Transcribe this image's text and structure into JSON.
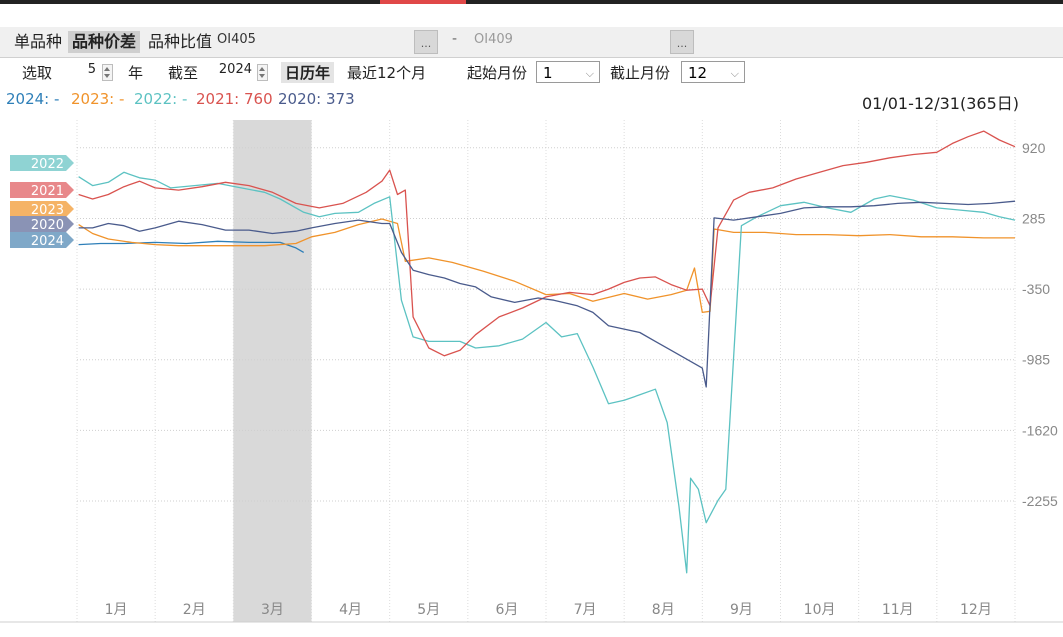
{
  "tabs": [
    {
      "label": "单品种",
      "active": false
    },
    {
      "label": "品种价差",
      "active": true
    },
    {
      "label": "品种比值",
      "active": false
    }
  ],
  "symbols": {
    "left": "OI405",
    "separator": "-",
    "right": "OI409",
    "button_label": "..."
  },
  "controls": {
    "select_label": "选取",
    "years_value": "5",
    "year_unit": "年",
    "until_label": "截至",
    "until_value": "2024",
    "calendar_label": "日历年",
    "recent_label": "最近12个月",
    "start_month_label": "起始月份",
    "start_month_value": "1",
    "end_month_label": "截止月份",
    "end_month_value": "12"
  },
  "legend": [
    {
      "text": "2024: -",
      "color": "#2e7fb8"
    },
    {
      "text": "2023: -",
      "color": "#f0932b"
    },
    {
      "text": "2022: -",
      "color": "#5cc2c2"
    },
    {
      "text": "2021: 760",
      "color": "#d9534f"
    },
    {
      "text": "2020: 373",
      "color": "#4a5b8c"
    }
  ],
  "range_label": "01/01-12/31(365日)",
  "chart_data": {
    "type": "line",
    "x_unit": "month",
    "xlim": [
      1,
      13
    ],
    "ylim": [
      -3100,
      1170
    ],
    "y_ticks": [
      920,
      285,
      -350,
      -985,
      -1620,
      -2255
    ],
    "y_tick_labels": [
      "920",
      "285",
      "-350",
      "-985",
      "-1620",
      "-2255"
    ],
    "x_tick_labels": [
      "1月",
      "2月",
      "3月",
      "4月",
      "5月",
      "6月",
      "7月",
      "8月",
      "9月",
      "10月",
      "11月",
      "12月"
    ],
    "shaded_region": {
      "x_start": 3.0,
      "x_end": 4.0
    },
    "grid": true,
    "series_tags": [
      "2022",
      "2021",
      "2023",
      "2020",
      "2024"
    ],
    "series": [
      {
        "name": "2024",
        "color": "#2e7fb8",
        "tag_color": "#7fa8c8",
        "points": [
          [
            1.02,
            50
          ],
          [
            1.3,
            60
          ],
          [
            1.6,
            60
          ],
          [
            2.0,
            70
          ],
          [
            2.4,
            60
          ],
          [
            2.8,
            80
          ],
          [
            3.2,
            70
          ],
          [
            3.6,
            70
          ],
          [
            3.8,
            20
          ],
          [
            3.9,
            -20
          ]
        ]
      },
      {
        "name": "2023",
        "color": "#f0932b",
        "tag_color": "#f5b366",
        "points": [
          [
            1.02,
            230
          ],
          [
            1.2,
            150
          ],
          [
            1.4,
            100
          ],
          [
            1.7,
            70
          ],
          [
            2.0,
            50
          ],
          [
            2.3,
            40
          ],
          [
            2.6,
            40
          ],
          [
            3.0,
            40
          ],
          [
            3.4,
            40
          ],
          [
            3.8,
            60
          ],
          [
            4.0,
            120
          ],
          [
            4.3,
            160
          ],
          [
            4.6,
            230
          ],
          [
            4.9,
            280
          ],
          [
            5.1,
            240
          ],
          [
            5.2,
            -100
          ],
          [
            5.5,
            -70
          ],
          [
            5.8,
            -110
          ],
          [
            6.2,
            -190
          ],
          [
            6.6,
            -280
          ],
          [
            7.0,
            -400
          ],
          [
            7.3,
            -390
          ],
          [
            7.6,
            -460
          ],
          [
            8.0,
            -390
          ],
          [
            8.3,
            -440
          ],
          [
            8.6,
            -400
          ],
          [
            8.8,
            -360
          ],
          [
            8.9,
            -160
          ],
          [
            9.0,
            -560
          ],
          [
            9.1,
            -550
          ],
          [
            9.15,
            190
          ],
          [
            9.4,
            160
          ],
          [
            9.8,
            160
          ],
          [
            10.2,
            140
          ],
          [
            10.6,
            140
          ],
          [
            11.0,
            130
          ],
          [
            11.4,
            140
          ],
          [
            11.8,
            120
          ],
          [
            12.2,
            120
          ],
          [
            12.6,
            110
          ],
          [
            13.0,
            110
          ]
        ]
      },
      {
        "name": "2022",
        "color": "#5cc2c2",
        "tag_color": "#8fd3d3",
        "points": [
          [
            1.02,
            660
          ],
          [
            1.2,
            580
          ],
          [
            1.4,
            610
          ],
          [
            1.6,
            700
          ],
          [
            1.8,
            650
          ],
          [
            2.0,
            630
          ],
          [
            2.2,
            560
          ],
          [
            2.5,
            580
          ],
          [
            2.8,
            600
          ],
          [
            3.1,
            560
          ],
          [
            3.4,
            520
          ],
          [
            3.6,
            460
          ],
          [
            3.9,
            340
          ],
          [
            4.1,
            300
          ],
          [
            4.3,
            330
          ],
          [
            4.6,
            340
          ],
          [
            4.8,
            420
          ],
          [
            5.0,
            480
          ],
          [
            5.15,
            -450
          ],
          [
            5.3,
            -780
          ],
          [
            5.5,
            -820
          ],
          [
            5.7,
            -820
          ],
          [
            5.9,
            -820
          ],
          [
            6.1,
            -880
          ],
          [
            6.4,
            -860
          ],
          [
            6.7,
            -800
          ],
          [
            7.0,
            -650
          ],
          [
            7.2,
            -780
          ],
          [
            7.4,
            -750
          ],
          [
            7.6,
            -1050
          ],
          [
            7.8,
            -1380
          ],
          [
            8.0,
            -1350
          ],
          [
            8.2,
            -1300
          ],
          [
            8.4,
            -1250
          ],
          [
            8.55,
            -1550
          ],
          [
            8.7,
            -2300
          ],
          [
            8.8,
            -2900
          ],
          [
            8.85,
            -2050
          ],
          [
            8.95,
            -2150
          ],
          [
            9.05,
            -2450
          ],
          [
            9.2,
            -2250
          ],
          [
            9.3,
            -2150
          ],
          [
            9.5,
            220
          ],
          [
            9.7,
            300
          ],
          [
            10.0,
            400
          ],
          [
            10.3,
            430
          ],
          [
            10.6,
            380
          ],
          [
            10.9,
            340
          ],
          [
            11.2,
            460
          ],
          [
            11.4,
            490
          ],
          [
            11.7,
            450
          ],
          [
            12.0,
            380
          ],
          [
            12.3,
            360
          ],
          [
            12.6,
            340
          ],
          [
            12.8,
            300
          ],
          [
            13.0,
            270
          ]
        ]
      },
      {
        "name": "2021",
        "color": "#d9534f",
        "tag_color": "#e8888a",
        "points": [
          [
            1.02,
            500
          ],
          [
            1.2,
            460
          ],
          [
            1.4,
            500
          ],
          [
            1.6,
            570
          ],
          [
            1.8,
            620
          ],
          [
            2.0,
            560
          ],
          [
            2.3,
            540
          ],
          [
            2.6,
            570
          ],
          [
            2.9,
            610
          ],
          [
            3.2,
            580
          ],
          [
            3.5,
            520
          ],
          [
            3.8,
            420
          ],
          [
            4.1,
            380
          ],
          [
            4.4,
            420
          ],
          [
            4.7,
            520
          ],
          [
            4.9,
            620
          ],
          [
            5.0,
            720
          ],
          [
            5.1,
            500
          ],
          [
            5.2,
            540
          ],
          [
            5.3,
            -600
          ],
          [
            5.5,
            -880
          ],
          [
            5.7,
            -950
          ],
          [
            5.9,
            -900
          ],
          [
            6.1,
            -760
          ],
          [
            6.4,
            -600
          ],
          [
            6.7,
            -520
          ],
          [
            7.0,
            -420
          ],
          [
            7.3,
            -380
          ],
          [
            7.6,
            -400
          ],
          [
            7.8,
            -350
          ],
          [
            8.0,
            -290
          ],
          [
            8.2,
            -250
          ],
          [
            8.4,
            -240
          ],
          [
            8.6,
            -310
          ],
          [
            8.8,
            -360
          ],
          [
            9.0,
            -350
          ],
          [
            9.1,
            -500
          ],
          [
            9.2,
            200
          ],
          [
            9.4,
            450
          ],
          [
            9.6,
            520
          ],
          [
            9.9,
            560
          ],
          [
            10.2,
            640
          ],
          [
            10.5,
            700
          ],
          [
            10.8,
            760
          ],
          [
            11.1,
            790
          ],
          [
            11.4,
            830
          ],
          [
            11.7,
            860
          ],
          [
            12.0,
            880
          ],
          [
            12.2,
            960
          ],
          [
            12.4,
            1020
          ],
          [
            12.6,
            1070
          ],
          [
            12.8,
            990
          ],
          [
            13.0,
            930
          ]
        ]
      },
      {
        "name": "2020",
        "color": "#4a5b8c",
        "tag_color": "#8a93b5",
        "points": [
          [
            1.02,
            200
          ],
          [
            1.2,
            200
          ],
          [
            1.4,
            240
          ],
          [
            1.6,
            220
          ],
          [
            1.8,
            170
          ],
          [
            2.0,
            200
          ],
          [
            2.3,
            260
          ],
          [
            2.6,
            230
          ],
          [
            2.9,
            180
          ],
          [
            3.2,
            180
          ],
          [
            3.5,
            150
          ],
          [
            3.8,
            170
          ],
          [
            4.0,
            200
          ],
          [
            4.3,
            240
          ],
          [
            4.6,
            270
          ],
          [
            4.9,
            240
          ],
          [
            5.0,
            240
          ],
          [
            5.15,
            -20
          ],
          [
            5.3,
            -180
          ],
          [
            5.5,
            -220
          ],
          [
            5.7,
            -250
          ],
          [
            5.9,
            -300
          ],
          [
            6.1,
            -330
          ],
          [
            6.3,
            -420
          ],
          [
            6.6,
            -470
          ],
          [
            6.9,
            -430
          ],
          [
            7.1,
            -450
          ],
          [
            7.4,
            -500
          ],
          [
            7.6,
            -560
          ],
          [
            7.8,
            -680
          ],
          [
            8.0,
            -710
          ],
          [
            8.2,
            -740
          ],
          [
            8.4,
            -820
          ],
          [
            8.6,
            -900
          ],
          [
            8.8,
            -980
          ],
          [
            9.0,
            -1060
          ],
          [
            9.05,
            -1230
          ],
          [
            9.15,
            290
          ],
          [
            9.4,
            270
          ],
          [
            9.7,
            300
          ],
          [
            10.0,
            330
          ],
          [
            10.3,
            380
          ],
          [
            10.6,
            390
          ],
          [
            10.9,
            390
          ],
          [
            11.2,
            400
          ],
          [
            11.5,
            420
          ],
          [
            11.8,
            430
          ],
          [
            12.1,
            420
          ],
          [
            12.4,
            410
          ],
          [
            12.7,
            420
          ],
          [
            13.0,
            440
          ]
        ]
      }
    ]
  }
}
